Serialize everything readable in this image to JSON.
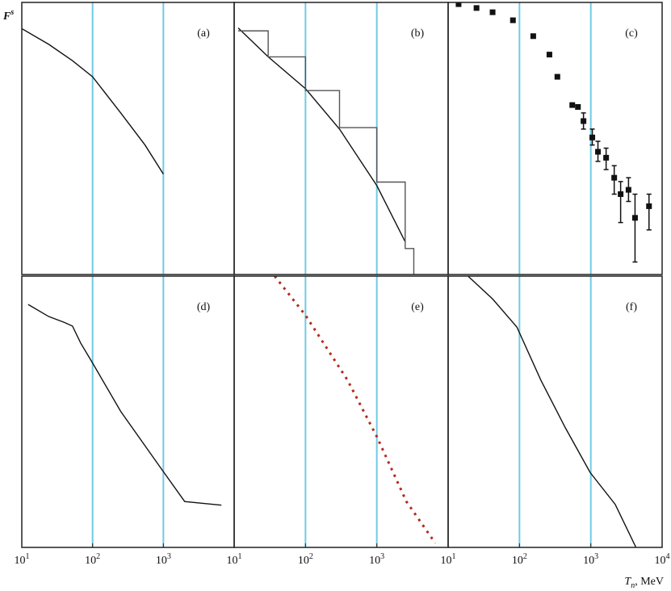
{
  "chart_data": [
    {
      "type": "line",
      "label": "(a)",
      "ylabel": {
        "text": "F",
        "sup": "s"
      },
      "log_x": true,
      "log_y": true,
      "xlim": [
        10,
        10000
      ],
      "ylim": [
        1e-05,
        1
      ],
      "vlines": [
        100,
        1000
      ],
      "vline_color": "#6ecbe4",
      "x": [
        10,
        24,
        52,
        100,
        250,
        550,
        1000
      ],
      "series": [
        {
          "color": "#111111",
          "values": [
            0.33,
            0.17,
            0.085,
            0.043,
            0.0093,
            0.0024,
            0.0007
          ]
        }
      ]
    },
    {
      "type": "line",
      "label": "(b)",
      "log_x": true,
      "log_y": true,
      "xlim": [
        10,
        10000
      ],
      "ylim": [
        1e-05,
        1
      ],
      "vlines": [
        100,
        1000
      ],
      "vline_color": "#6ecbe4",
      "x": [
        11.4,
        30,
        100,
        300,
        1000,
        2500,
        3300
      ],
      "series": [
        {
          "color": "#111111",
          "values": [
            0.34,
            0.1,
            0.026,
            0.0047,
            0.00043,
            4e-05,
            null
          ]
        },
        {
          "color": "#555555",
          "style": "step",
          "values": [
            0.3,
            0.1,
            0.024,
            0.005,
            0.0005,
            3e-05,
            1e-05
          ]
        }
      ]
    },
    {
      "type": "scatter",
      "label": "(c)",
      "log_x": true,
      "log_y": true,
      "xlim": [
        10,
        10000
      ],
      "ylim": [
        1e-05,
        1
      ],
      "vlines": [
        100,
        1000
      ],
      "vline_color": "#6ecbe4",
      "x": [
        14,
        25,
        42,
        81,
        156,
        263,
        340,
        550,
        660,
        790,
        1050,
        1260,
        1640,
        2130,
        2620,
        3380,
        4170,
        6550
      ],
      "series": [
        {
          "color": "#111111",
          "values": [
            0.93,
            0.79,
            0.66,
            0.47,
            0.24,
            0.11,
            0.043,
            0.013,
            0.012,
            0.0066,
            0.0033,
            0.0018,
            0.0014,
            0.0006,
            0.0003,
            0.00036,
            0.00011,
            0.00018
          ],
          "lower": [
            null,
            null,
            null,
            null,
            null,
            null,
            null,
            null,
            null,
            0.0047,
            0.0024,
            0.0012,
            0.00085,
            0.0003,
            9e-05,
            0.00022,
            1.7e-05,
            6.6e-05
          ],
          "upper": [
            null,
            null,
            null,
            null,
            null,
            null,
            null,
            null,
            null,
            0.0093,
            0.0047,
            0.0028,
            0.0021,
            0.001,
            0.00051,
            0.0006,
            0.0003,
            0.0003
          ]
        }
      ]
    },
    {
      "type": "line",
      "label": "(d)",
      "log_x": true,
      "log_y": true,
      "xlim": [
        10,
        10000
      ],
      "ylim": [
        1e-05,
        1
      ],
      "vlines": [
        100,
        1000
      ],
      "vline_color": "#6ecbe4",
      "xticks": [
        {
          "value": 10,
          "label": "10",
          "exp": "1"
        },
        {
          "value": 100,
          "label": "10",
          "exp": "2"
        },
        {
          "value": 1000,
          "label": "10",
          "exp": "3"
        }
      ],
      "x": [
        12.3,
        24,
        40,
        52,
        68,
        100,
        250,
        920,
        2000,
        6600
      ],
      "series": [
        {
          "color": "#111111",
          "values": [
            0.3,
            0.18,
            0.14,
            0.12,
            0.058,
            0.025,
            0.0032,
            0.00029,
            7e-05,
            6e-05
          ]
        }
      ]
    },
    {
      "type": "line",
      "label": "(e)",
      "log_x": true,
      "log_y": true,
      "xlim": [
        10,
        10000
      ],
      "ylim": [
        1e-05,
        1
      ],
      "vlines": [
        100,
        1000
      ],
      "vline_color": "#6ecbe4",
      "xticks": [
        {
          "value": 10,
          "label": "10",
          "exp": "1"
        },
        {
          "value": 100,
          "label": "10",
          "exp": "2"
        },
        {
          "value": 1000,
          "label": "10",
          "exp": "3"
        }
      ],
      "x": [
        37,
        100,
        390,
        1000,
        2600,
        6600
      ],
      "series": [
        {
          "color": "#b52a1c",
          "style": "dotted",
          "values": [
            1,
            0.19,
            0.012,
            0.0011,
            7e-05,
            1.2e-05
          ]
        }
      ]
    },
    {
      "type": "line",
      "label": "(f)",
      "xlabel": {
        "text": "T",
        "sub": "n",
        "unit": ", MeV"
      },
      "log_x": true,
      "log_y": true,
      "xlim": [
        10,
        10000
      ],
      "ylim": [
        1e-05,
        1
      ],
      "vlines": [
        100,
        1000
      ],
      "vline_color": "#6ecbe4",
      "xticks": [
        {
          "value": 10,
          "label": "10",
          "exp": "1"
        },
        {
          "value": 100,
          "label": "10",
          "exp": "2"
        },
        {
          "value": 1000,
          "label": "10",
          "exp": "3"
        },
        {
          "value": 10000,
          "label": "10",
          "exp": "4"
        }
      ],
      "x": [
        19,
        42,
        92,
        200,
        440,
        980,
        2200,
        4300
      ],
      "series": [
        {
          "color": "#111111",
          "values": [
            1,
            0.38,
            0.115,
            0.012,
            0.0016,
            0.00024,
            6.2e-05,
            1e-05
          ]
        }
      ]
    }
  ]
}
